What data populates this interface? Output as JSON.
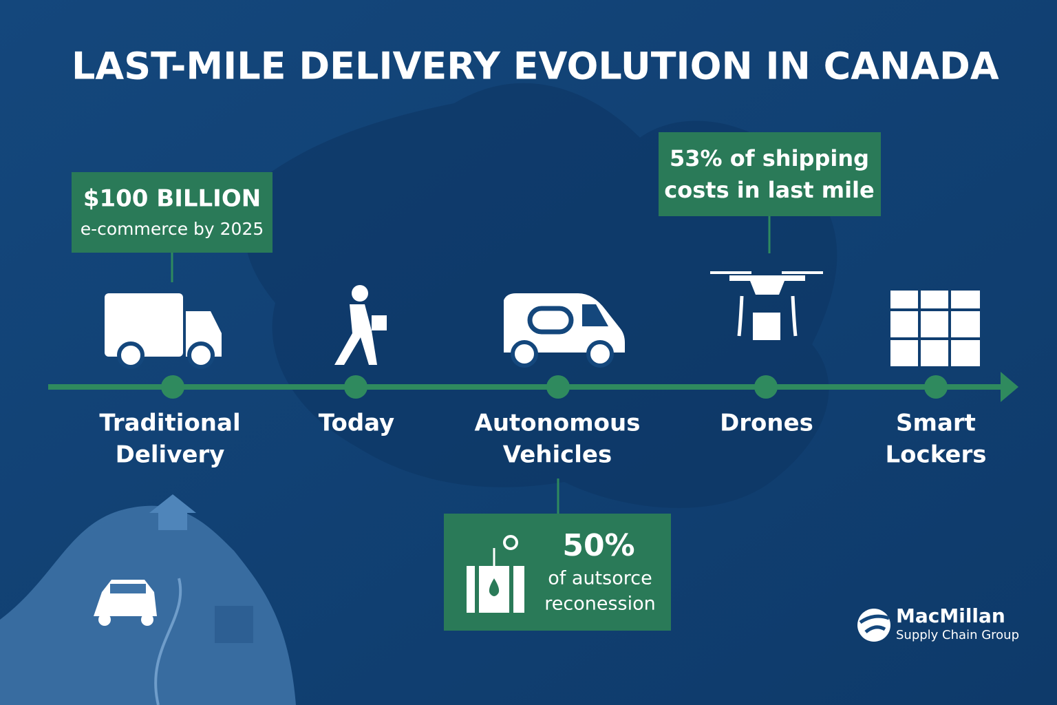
{
  "title": "LAST-MILE DELIVERY EVOLUTION IN CANADA",
  "stages": [
    {
      "label": [
        "Traditional",
        "Delivery"
      ]
    },
    {
      "label": [
        "Today"
      ]
    },
    {
      "label": [
        "Autonomous",
        "Vehicles"
      ]
    },
    {
      "label": [
        "Drones"
      ]
    },
    {
      "label": [
        "Smart",
        "Lockers"
      ]
    }
  ],
  "callouts": [
    {
      "lines": [
        "$100 BILLION",
        "e-commerce by 2025"
      ]
    },
    {
      "lines": [
        "53% of shipping",
        "costs in last mile"
      ]
    },
    {
      "lines": [
        "50%",
        "of autsorce",
        "reconession"
      ]
    }
  ],
  "logo": {
    "name": "MacMillan",
    "tagline": "Supply Chain Group"
  }
}
